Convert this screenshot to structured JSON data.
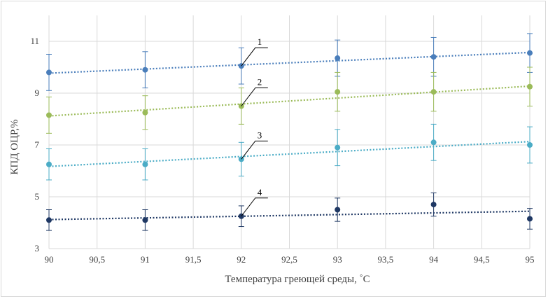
{
  "chart_data": {
    "type": "scatter",
    "xlabel": "Температура греющей среды, ˚С",
    "ylabel": "КПД ОЦР,%",
    "xlim": [
      90,
      95
    ],
    "ylim": [
      3,
      12
    ],
    "x_ticks": [
      "90",
      "90,5",
      "91",
      "91,5",
      "92",
      "92,5",
      "93",
      "93,5",
      "94",
      "94,5",
      "95"
    ],
    "y_ticks": [
      "3",
      "5",
      "7",
      "9",
      "11"
    ],
    "grid": true,
    "trendlines": "linear, dotted",
    "series": [
      {
        "label": "1",
        "color": "#4a7ebb",
        "x": [
          90,
          91,
          92,
          93,
          94,
          95
        ],
        "y": [
          9.8,
          9.9,
          10.05,
          10.35,
          10.4,
          10.55
        ],
        "err": [
          0.7,
          0.7,
          0.7,
          0.7,
          0.75,
          0.75
        ],
        "trend": [
          9.77,
          10.57
        ]
      },
      {
        "label": "2",
        "color": "#9bbb59",
        "x": [
          90,
          91,
          92,
          93,
          94,
          95
        ],
        "y": [
          8.15,
          8.25,
          8.5,
          9.05,
          9.05,
          9.25
        ],
        "err": [
          0.7,
          0.65,
          0.7,
          0.75,
          0.75,
          0.75
        ],
        "trend": [
          8.12,
          9.27
        ]
      },
      {
        "label": "3",
        "color": "#4bacc6",
        "x": [
          90,
          91,
          92,
          93,
          94,
          95
        ],
        "y": [
          6.25,
          6.25,
          6.45,
          6.9,
          7.1,
          7.0
        ],
        "err": [
          0.6,
          0.6,
          0.65,
          0.7,
          0.7,
          0.7
        ],
        "trend": [
          6.17,
          7.13
        ]
      },
      {
        "label": "4",
        "color": "#1f3864",
        "x": [
          90,
          91,
          92,
          93,
          94,
          95
        ],
        "y": [
          4.1,
          4.1,
          4.25,
          4.5,
          4.7,
          4.15
        ],
        "err": [
          0.4,
          0.4,
          0.4,
          0.45,
          0.45,
          0.4
        ],
        "trend": [
          4.12,
          4.44
        ]
      }
    ]
  }
}
